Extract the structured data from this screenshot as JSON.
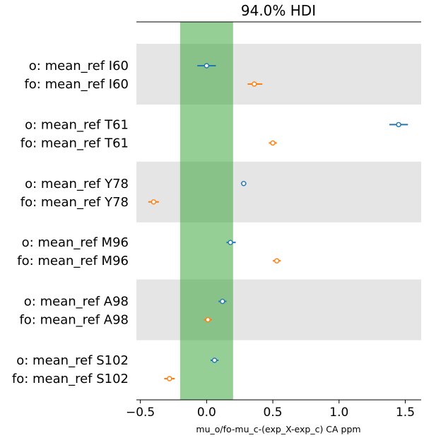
{
  "chart_data": {
    "type": "forest",
    "title": "94.0% HDI",
    "xlabel": "mu_o/fo-mu_c-(exp_X-exp_c) CA ppm",
    "ylabel": "",
    "xlim": [
      -0.53,
      1.62
    ],
    "xticks": [
      -0.5,
      0.0,
      0.5,
      1.0,
      1.5
    ],
    "xtick_labels": [
      "−0.5",
      "0.0",
      "0.5",
      "1.0",
      "1.5"
    ],
    "rope": [
      -0.2,
      0.2
    ],
    "colors": {
      "o": "#1f77b4",
      "fo": "#ff7f0e",
      "rope": "#2ca02c",
      "band": "#e5e5e5"
    },
    "grid": false,
    "groups": [
      {
        "rows": [
          {
            "label": "o: mean_ref I60",
            "series": "o",
            "mean": 0.0,
            "hdi": [
              -0.07,
              0.07
            ]
          },
          {
            "label": "fo: mean_ref I60",
            "series": "fo",
            "mean": 0.36,
            "hdi": [
              0.31,
              0.42
            ]
          }
        ]
      },
      {
        "rows": [
          {
            "label": "o: mean_ref T61",
            "series": "o",
            "mean": 1.45,
            "hdi": [
              1.38,
              1.52
            ]
          },
          {
            "label": "fo: mean_ref T61",
            "series": "fo",
            "mean": 0.5,
            "hdi": [
              0.47,
              0.53
            ]
          }
        ]
      },
      {
        "rows": [
          {
            "label": "o: mean_ref Y78",
            "series": "o",
            "mean": 0.28,
            "hdi": [
              0.26,
              0.3
            ]
          },
          {
            "label": "fo: mean_ref Y78",
            "series": "fo",
            "mean": -0.4,
            "hdi": [
              -0.44,
              -0.36
            ]
          }
        ]
      },
      {
        "rows": [
          {
            "label": "o: mean_ref M96",
            "series": "o",
            "mean": 0.18,
            "hdi": [
              0.15,
              0.22
            ]
          },
          {
            "label": "fo: mean_ref M96",
            "series": "fo",
            "mean": 0.53,
            "hdi": [
              0.5,
              0.56
            ]
          }
        ]
      },
      {
        "rows": [
          {
            "label": "o: mean_ref A98",
            "series": "o",
            "mean": 0.12,
            "hdi": [
              0.09,
              0.15
            ]
          },
          {
            "label": "fo: mean_ref A98",
            "series": "fo",
            "mean": 0.01,
            "hdi": [
              -0.02,
              0.04
            ]
          }
        ]
      },
      {
        "rows": [
          {
            "label": "o: mean_ref S102",
            "series": "o",
            "mean": 0.06,
            "hdi": [
              0.03,
              0.09
            ]
          },
          {
            "label": "fo: mean_ref S102",
            "series": "fo",
            "mean": -0.28,
            "hdi": [
              -0.32,
              -0.24
            ]
          }
        ]
      }
    ]
  }
}
